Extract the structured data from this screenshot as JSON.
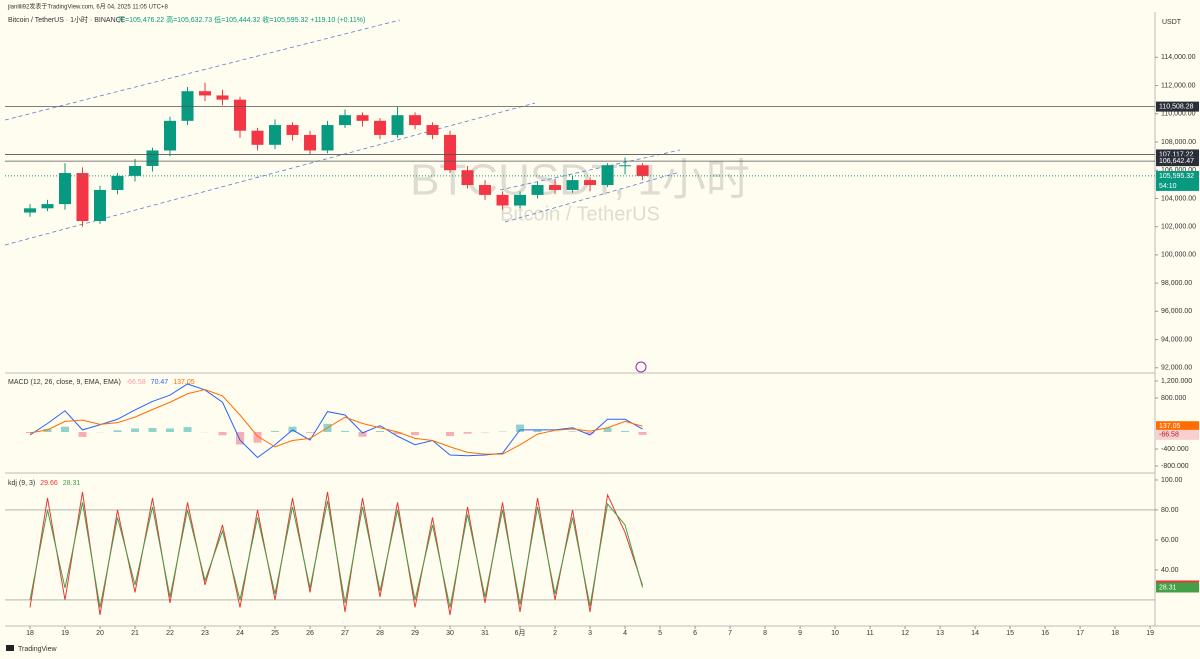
{
  "header": {
    "publisher": "jianlili92发表于TradingView.com, 6月 04, 2025 11:05 UTC+8",
    "symbol": "Bitcoin / TetherUS · 1小时 · BINANCE",
    "ohlc": "开=105,476.22 高=105,632.73 低=105,444.32 收=105,595.32 +119.10 (+0.11%)",
    "currency": "USDT"
  },
  "footer": {
    "brand": "TradingView"
  },
  "chart_data": [
    {
      "type": "candlestick",
      "watermark": "BTCUSDT, 1小时",
      "watermark_sub": "Bitcoin / TetherUS",
      "up_color": "#089981",
      "down_color": "#f23645",
      "x": [
        0,
        0.5,
        1,
        1.5,
        2,
        2.5,
        3,
        3.5,
        4,
        4.5,
        5,
        5.5,
        6,
        6.5,
        7,
        7.5,
        8,
        8.5,
        9,
        9.5,
        10,
        10.5,
        11,
        11.5,
        12,
        12.5,
        13,
        13.5,
        14,
        14.5,
        15,
        15.5,
        16,
        16.5,
        17,
        17.5
      ],
      "open": [
        103000,
        103300,
        103600,
        105800,
        102400,
        104600,
        105600,
        106300,
        107400,
        109500,
        111600,
        111300,
        111000,
        108800,
        107800,
        109200,
        108500,
        107400,
        109200,
        109900,
        109500,
        108500,
        109900,
        109200,
        108500,
        106000,
        104950,
        104250,
        103500,
        104250,
        104950,
        104600,
        105300,
        104950,
        106350,
        106350
      ],
      "high": [
        103600,
        103900,
        106500,
        106200,
        104900,
        105800,
        106800,
        107600,
        109800,
        111900,
        112200,
        111700,
        111200,
        109000,
        109600,
        109400,
        108800,
        109500,
        110300,
        110100,
        109700,
        110500,
        110100,
        109400,
        108800,
        106300,
        105300,
        104500,
        104500,
        105200,
        105400,
        105600,
        105500,
        106500,
        106900,
        106500
      ],
      "low": [
        102700,
        103100,
        103200,
        102000,
        102200,
        104300,
        105200,
        105900,
        107000,
        109200,
        110900,
        110600,
        108300,
        107400,
        107500,
        108100,
        107100,
        107200,
        109000,
        109100,
        108200,
        108300,
        108900,
        108200,
        105800,
        104700,
        103900,
        103200,
        103300,
        104000,
        104300,
        104400,
        104500,
        104800,
        105700,
        105300
      ],
      "close": [
        103300,
        103600,
        105800,
        102400,
        104600,
        105600,
        106300,
        107400,
        109500,
        111600,
        111300,
        111000,
        108800,
        107800,
        109200,
        108500,
        107400,
        109200,
        109900,
        109500,
        108500,
        109900,
        109200,
        108500,
        106000,
        104950,
        104250,
        103500,
        104250,
        104950,
        104600,
        105300,
        104950,
        106350,
        106350,
        105595.32
      ],
      "xlim": [
        -0.714,
        32.14
      ],
      "xticks": [
        {
          "value": 0,
          "label": "18"
        },
        {
          "value": 1,
          "label": "19"
        },
        {
          "value": 2,
          "label": "20"
        },
        {
          "value": 3,
          "label": "21"
        },
        {
          "value": 4,
          "label": "22"
        },
        {
          "value": 5,
          "label": "23"
        },
        {
          "value": 6,
          "label": "24"
        },
        {
          "value": 7,
          "label": "25"
        },
        {
          "value": 8,
          "label": "26"
        },
        {
          "value": 9,
          "label": "27"
        },
        {
          "value": 10,
          "label": "28"
        },
        {
          "value": 11,
          "label": "29"
        },
        {
          "value": 12,
          "label": "30"
        },
        {
          "value": 13,
          "label": "31"
        },
        {
          "value": 14,
          "label": "6月"
        },
        {
          "value": 15,
          "label": "2"
        },
        {
          "value": 16,
          "label": "3"
        },
        {
          "value": 17,
          "label": "4"
        },
        {
          "value": 18,
          "label": "5"
        },
        {
          "value": 19,
          "label": "6"
        },
        {
          "value": 20,
          "label": "7"
        },
        {
          "value": 21,
          "label": "8"
        },
        {
          "value": 22,
          "label": "9"
        },
        {
          "value": 23,
          "label": "10"
        },
        {
          "value": 24,
          "label": "11"
        },
        {
          "value": 25,
          "label": "12"
        },
        {
          "value": 26,
          "label": "13"
        },
        {
          "value": 27,
          "label": "14"
        },
        {
          "value": 28,
          "label": "15"
        },
        {
          "value": 29,
          "label": "16"
        },
        {
          "value": 30,
          "label": "17"
        },
        {
          "value": 31,
          "label": "18"
        },
        {
          "value": 32,
          "label": "19"
        }
      ],
      "ylim": [
        91700,
        117000
      ],
      "yticks": [
        {
          "value": 114000,
          "label": "114,000.00"
        },
        {
          "value": 112000,
          "label": "112,000.00"
        },
        {
          "value": 110000,
          "label": "110,000.00"
        },
        {
          "value": 108000,
          "label": "108,000.00"
        },
        {
          "value": 106000,
          "label": "106,000.00"
        },
        {
          "value": 104000,
          "label": "104,000.00"
        },
        {
          "value": 102000,
          "label": "102,000.00"
        },
        {
          "value": 100000,
          "label": "100,000.00"
        },
        {
          "value": 98000,
          "label": "98,000.00"
        },
        {
          "value": 96000,
          "label": "96,000.00"
        },
        {
          "value": 94000,
          "label": "94,000.00"
        },
        {
          "value": 92000,
          "label": "92,000.00"
        }
      ],
      "price_lines": [
        {
          "value": 110508.28,
          "label": "110,508.28"
        },
        {
          "value": 107117.22,
          "label": "107,117.22"
        },
        {
          "value": 106642.47,
          "label": "106,642.47"
        }
      ],
      "last_price": {
        "value": 105595.32,
        "label": "105,595.32"
      },
      "countdown": "54:10"
    },
    {
      "type": "macd",
      "title": "MACD (12, 26, close, 9, EMA, EMA)",
      "histogram": {
        "up_color": "#8fd3ca",
        "down_color": "#f7aeb0",
        "values": [
          -25,
          75,
          125,
          -115,
          -5,
          40,
          85,
          95,
          85,
          115,
          -5,
          -75,
          -295,
          -250,
          25,
          125,
          -20,
          190,
          25,
          -110,
          25,
          -50,
          -75,
          0,
          -95,
          -40,
          -10,
          10,
          175,
          50,
          5,
          15,
          -45,
          100,
          25,
          -66.58
        ],
        "last_label": "-66.58"
      },
      "series": [
        {
          "color": "#2962ff",
          "values": [
            -70,
            200,
            500,
            50,
            170,
            300,
            520,
            720,
            870,
            1130,
            990,
            700,
            -190,
            -600,
            -300,
            50,
            -190,
            480,
            400,
            -20,
            150,
            -100,
            -300,
            -200,
            -540,
            -560,
            -540,
            -500,
            50,
            50,
            50,
            100,
            -70,
            300,
            300,
            70.47
          ],
          "last_label": "70.47"
        },
        {
          "color": "#ff6d00",
          "values": [
            -20,
            50,
            250,
            280,
            180,
            220,
            350,
            530,
            700,
            900,
            1000,
            850,
            400,
            -100,
            -350,
            -200,
            -150,
            100,
            350,
            200,
            100,
            0,
            -150,
            -200,
            -350,
            -480,
            -520,
            -520,
            -300,
            -50,
            40,
            70,
            20,
            100,
            250,
            137.05
          ],
          "last_label": "137.05"
        }
      ],
      "ylim": [
        -941,
        1365
      ],
      "yticks": [
        {
          "value": 1200,
          "label": "1,200.000"
        },
        {
          "value": 800,
          "label": "800.000"
        },
        {
          "value": -400,
          "label": "-400.000"
        },
        {
          "value": -800,
          "label": "-800.000"
        }
      ]
    },
    {
      "type": "kdj",
      "title": "kdj (9, 3)",
      "series": [
        {
          "color": "#e53935",
          "values": [
            15,
            88,
            20,
            92,
            10,
            80,
            25,
            88,
            18,
            85,
            30,
            70,
            15,
            80,
            20,
            88,
            25,
            92,
            12,
            88,
            22,
            85,
            15,
            75,
            10,
            82,
            18,
            85,
            12,
            88,
            20,
            80,
            12,
            90,
            65,
            29.66
          ],
          "last_label": "29.66"
        },
        {
          "color": "#43a047",
          "values": [
            20,
            80,
            28,
            85,
            15,
            75,
            30,
            82,
            22,
            80,
            33,
            66,
            20,
            75,
            24,
            82,
            28,
            86,
            18,
            82,
            26,
            80,
            20,
            70,
            15,
            77,
            22,
            80,
            17,
            82,
            24,
            75,
            16,
            84,
            70,
            28.31
          ],
          "last_label": "28.31"
        }
      ],
      "levels": [
        80,
        20
      ],
      "ylim": [
        3.3,
        103.3
      ],
      "yticks": [
        {
          "value": 100,
          "label": "100.00"
        },
        {
          "value": 80,
          "label": "80.00"
        },
        {
          "value": 60,
          "label": "60.00"
        },
        {
          "value": 40,
          "label": "40.00"
        }
      ]
    }
  ]
}
